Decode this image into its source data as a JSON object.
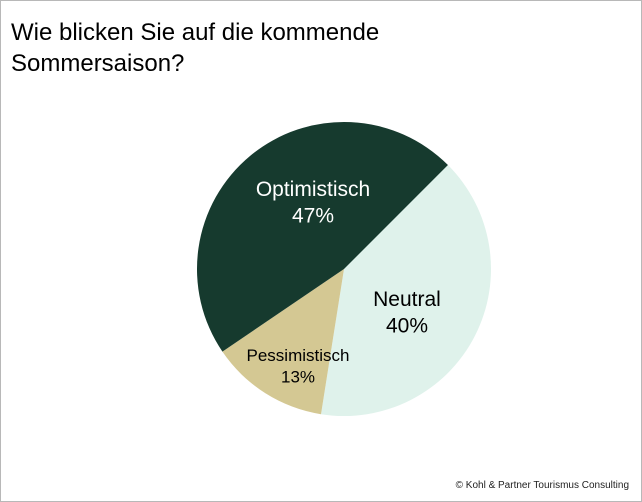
{
  "chart_data": {
    "type": "pie",
    "title": "Wie blicken Sie auf die kommende Sommersaison?",
    "start_angle_deg": 45,
    "direction": "clockwise",
    "slices": [
      {
        "label": "Neutral",
        "value": 40,
        "value_label": "40%",
        "color": "#dff2eb",
        "text_color": "#000000"
      },
      {
        "label": "Pessimistisch",
        "value": 13,
        "value_label": "13%",
        "color": "#d4c893",
        "text_color": "#000000"
      },
      {
        "label": "Optimistisch",
        "value": 47,
        "value_label": "47%",
        "color": "#163a2e",
        "text_color": "#ffffff"
      }
    ]
  },
  "footer": "© Kohl & Partner Tourismus Consulting"
}
